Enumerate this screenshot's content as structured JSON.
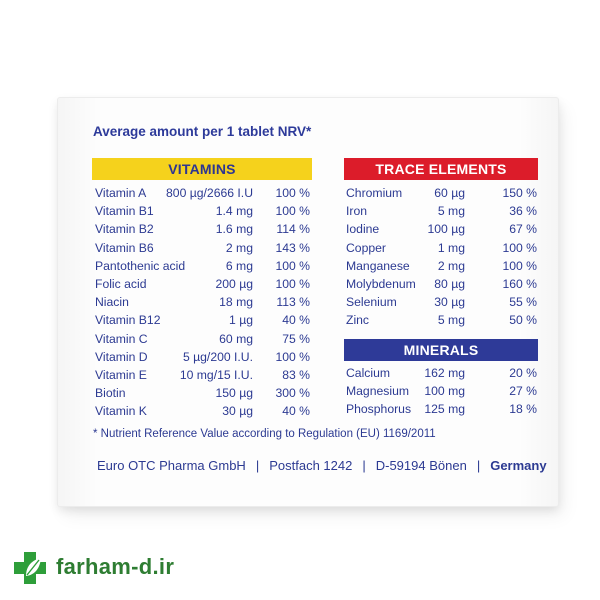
{
  "heading": "Average amount per 1 tablet NRV*",
  "vitamins": {
    "title": "VITAMINS",
    "rows": [
      {
        "name": "Vitamin A",
        "amount": "800 µg/2666 I.U",
        "nrv": "100 %"
      },
      {
        "name": "Vitamin B1",
        "amount": "1.4 mg",
        "nrv": "100 %"
      },
      {
        "name": "Vitamin B2",
        "amount": "1.6 mg",
        "nrv": "114 %"
      },
      {
        "name": "Vitamin B6",
        "amount": "2 mg",
        "nrv": "143 %"
      },
      {
        "name": "Pantothenic acid",
        "amount": "6 mg",
        "nrv": "100 %"
      },
      {
        "name": "Folic acid",
        "amount": "200 µg",
        "nrv": "100 %"
      },
      {
        "name": "Niacin",
        "amount": "18 mg",
        "nrv": "113 %"
      },
      {
        "name": "Vitamin B12",
        "amount": "1 µg",
        "nrv": "40 %"
      },
      {
        "name": "Vitamin C",
        "amount": "60 mg",
        "nrv": "75 %"
      },
      {
        "name": "Vitamin D",
        "amount": "5 µg/200 I.U.",
        "nrv": "100 %"
      },
      {
        "name": "Vitamin E",
        "amount": "10 mg/15 I.U.",
        "nrv": "83 %"
      },
      {
        "name": "Biotin",
        "amount": "150 µg",
        "nrv": "300 %"
      },
      {
        "name": "Vitamin K",
        "amount": "30 µg",
        "nrv": "40 %"
      }
    ]
  },
  "trace_elements": {
    "title": "TRACE ELEMENTS",
    "rows": [
      {
        "name": "Chromium",
        "amount": "60 µg",
        "nrv": "150 %"
      },
      {
        "name": "Iron",
        "amount": "5 mg",
        "nrv": "36 %"
      },
      {
        "name": "Iodine",
        "amount": "100 µg",
        "nrv": "67 %"
      },
      {
        "name": "Copper",
        "amount": "1 mg",
        "nrv": "100 %"
      },
      {
        "name": "Manganese",
        "amount": "2 mg",
        "nrv": "100 %"
      },
      {
        "name": "Molybdenum",
        "amount": "80 µg",
        "nrv": "160 %"
      },
      {
        "name": "Selenium",
        "amount": "30 µg",
        "nrv": "55 %"
      },
      {
        "name": "Zinc",
        "amount": "5 mg",
        "nrv": "50 %"
      }
    ]
  },
  "minerals": {
    "title": "MINERALS",
    "rows": [
      {
        "name": "Calcium",
        "amount": "162 mg",
        "nrv": "20 %"
      },
      {
        "name": "Magnesium",
        "amount": "100 mg",
        "nrv": "27 %"
      },
      {
        "name": "Phosphorus",
        "amount": "125 mg",
        "nrv": "18 %"
      }
    ]
  },
  "footnote": "*  Nutrient Reference Value according to Regulation (EU) 1169/2011",
  "footer": {
    "company": "Euro OTC Pharma GmbH",
    "address": "Postfach 1242",
    "city": "D-59194 Bönen",
    "country": "Germany",
    "separator": "|"
  },
  "watermark": {
    "text": "farham-d.ir",
    "icon": "pharmacy-cross-leaf-icon"
  },
  "colors": {
    "text_blue": "#2c3a92",
    "vitamins_yellow": "#f5d21c",
    "trace_red": "#dc1c2a",
    "minerals_blue": "#2e3a98",
    "watermark_green": "#2e7d32"
  }
}
